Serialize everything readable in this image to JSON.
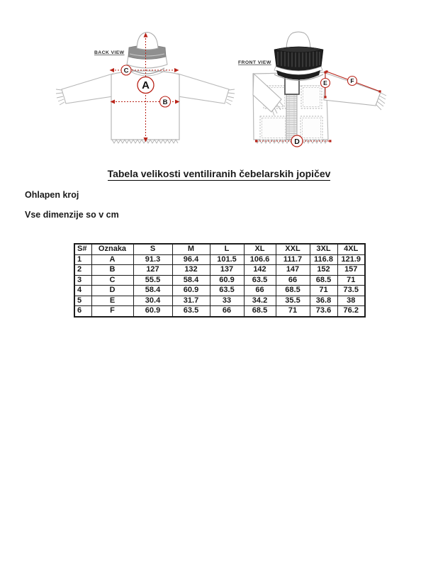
{
  "document": {
    "title": "Tabela velikosti ventiliranih čebelarskih jopičev",
    "note_fit": "Ohlapen kroj",
    "note_units": "Vse dimenzije so v cm"
  },
  "diagram": {
    "back_view_label": "BACK VIEW",
    "front_view_label": "FRONT VIEW",
    "markers": {
      "a": "A",
      "b": "B",
      "c": "C",
      "d": "D",
      "e": "E",
      "f": "F"
    },
    "colors": {
      "measure_red": "#b92318",
      "outline_gray": "#b8b8b8",
      "hat_band_gray": "#8f8f8f",
      "veil_dark": "#1e1e1e"
    }
  },
  "table": {
    "headers": [
      "S#",
      "Oznaka",
      "S",
      "M",
      "L",
      "XL",
      "XXL",
      "3XL",
      "4XL"
    ],
    "rows": [
      [
        "1",
        "A",
        "91.3",
        "96.4",
        "101.5",
        "106.6",
        "111.7",
        "116.8",
        "121.9"
      ],
      [
        "2",
        "B",
        "127",
        "132",
        "137",
        "142",
        "147",
        "152",
        "157"
      ],
      [
        "3",
        "C",
        "55.5",
        "58.4",
        "60.9",
        "63.5",
        "66",
        "68.5",
        "71"
      ],
      [
        "4",
        "D",
        "58.4",
        "60.9",
        "63.5",
        "66",
        "68.5",
        "71",
        "73.5"
      ],
      [
        "5",
        "E",
        "30.4",
        "31.7",
        "33",
        "34.2",
        "35.5",
        "36.8",
        "38"
      ],
      [
        "6",
        "F",
        "60.9",
        "63.5",
        "66",
        "68.5",
        "71",
        "73.6",
        "76.2"
      ]
    ]
  }
}
